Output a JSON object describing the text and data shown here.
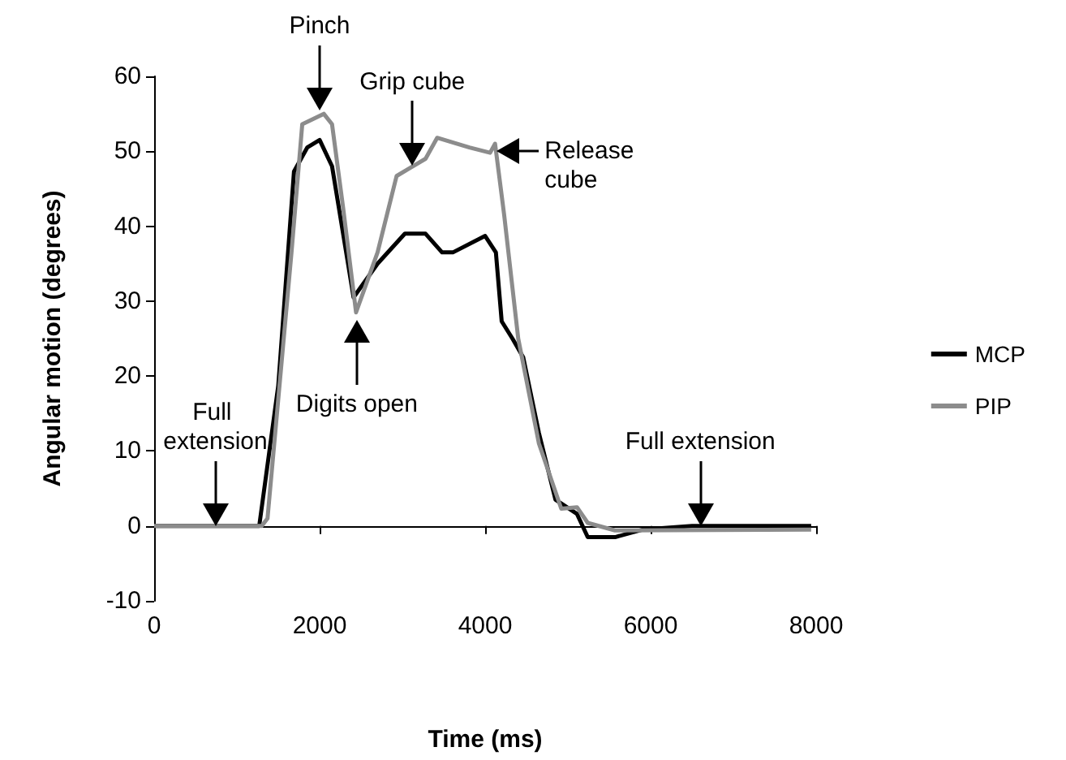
{
  "chart_data": {
    "type": "line",
    "xlabel": "Time (ms)",
    "ylabel": "Angular motion (degrees)",
    "xlim": [
      0,
      8000
    ],
    "xticks": [
      0,
      2000,
      4000,
      6000,
      8000
    ],
    "ylim": [
      -10,
      60
    ],
    "yticks": [
      -10,
      0,
      10,
      20,
      30,
      40,
      50,
      60
    ],
    "legend": "right",
    "marker": "none",
    "line_style": "solid",
    "series": [
      {
        "name": "MCP",
        "color": "#000000",
        "x": [
          0,
          700,
          1270,
          1500,
          1690,
          1850,
          2000,
          2150,
          2410,
          2700,
          3030,
          3280,
          3480,
          3610,
          4000,
          4130,
          4200,
          4330,
          4460,
          4650,
          4850,
          5110,
          5240,
          5570,
          5900,
          6500,
          7940
        ],
        "values": [
          0,
          0,
          0,
          18.7,
          47.3,
          50.5,
          51.5,
          48,
          30.5,
          35,
          39,
          39,
          36.5,
          36.5,
          38.7,
          36.5,
          27.3,
          25,
          22.5,
          12.4,
          3.5,
          1.6,
          -1.5,
          -1.5,
          -0.5,
          0,
          0
        ]
      },
      {
        "name": "PIP",
        "color": "#8c8c8c",
        "x": [
          0,
          700,
          1300,
          1370,
          1660,
          1790,
          2050,
          2150,
          2280,
          2440,
          2700,
          2930,
          3280,
          3420,
          3810,
          4060,
          4120,
          4230,
          4400,
          4650,
          4920,
          5110,
          5240,
          5570,
          7940
        ],
        "values": [
          0,
          0,
          0,
          1,
          36.5,
          53.6,
          55,
          53.6,
          42.8,
          28.5,
          36.5,
          46.7,
          49,
          51.8,
          50.5,
          49.8,
          51,
          41.5,
          25,
          11,
          2.3,
          2.5,
          0.4,
          -0.6,
          -0.5
        ]
      }
    ],
    "annotations": [
      {
        "text": "Pinch",
        "x": 2000,
        "y": 55.5
      },
      {
        "text": "Grip cube",
        "x": 3120,
        "y": 48
      },
      {
        "text": "Release cube",
        "x": 4130,
        "y": 50
      },
      {
        "text": "Digits open",
        "x": 2450,
        "y": 27.5
      },
      {
        "text": "Full extension",
        "x": 740,
        "y": 0
      },
      {
        "text": "Full extension",
        "x": 6600,
        "y": 0
      }
    ]
  }
}
